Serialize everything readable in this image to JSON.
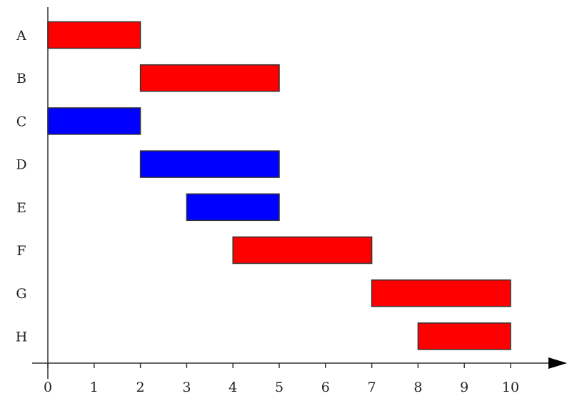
{
  "chart_data": {
    "type": "bar",
    "orientation": "horizontal",
    "subtype": "gantt",
    "title": "",
    "xlabel": "",
    "ylabel": "",
    "xlim": [
      0,
      10
    ],
    "x_ticks": [
      0,
      1,
      2,
      3,
      4,
      5,
      6,
      7,
      8,
      9,
      10
    ],
    "grid": false,
    "legend": "none",
    "colors": {
      "red": "#ff0000",
      "blue": "#0000ff",
      "axis": "#333333"
    },
    "tasks": [
      {
        "label": "A",
        "start": 0,
        "end": 2,
        "color": "red"
      },
      {
        "label": "B",
        "start": 2,
        "end": 5,
        "color": "red"
      },
      {
        "label": "C",
        "start": 0,
        "end": 2,
        "color": "blue"
      },
      {
        "label": "D",
        "start": 2,
        "end": 5,
        "color": "blue"
      },
      {
        "label": "E",
        "start": 3,
        "end": 5,
        "color": "blue"
      },
      {
        "label": "F",
        "start": 4,
        "end": 7,
        "color": "red"
      },
      {
        "label": "G",
        "start": 7,
        "end": 10,
        "color": "red"
      },
      {
        "label": "H",
        "start": 8,
        "end": 10,
        "color": "red"
      }
    ]
  }
}
